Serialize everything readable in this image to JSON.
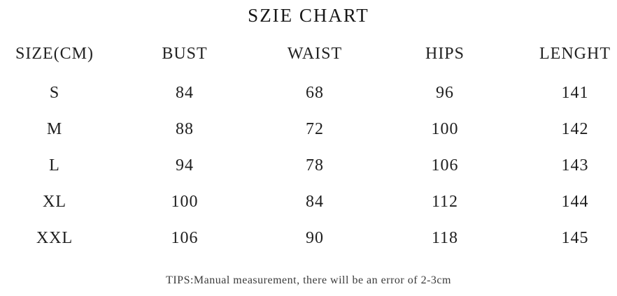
{
  "chart_data": {
    "type": "table",
    "title": "SZIE CHART",
    "unit": "cm",
    "columns": [
      "SIZE(CM)",
      "BUST",
      "WAIST",
      "HIPS",
      "LENGHT"
    ],
    "rows": [
      [
        "S",
        "84",
        "68",
        "96",
        "141"
      ],
      [
        "M",
        "88",
        "72",
        "100",
        "142"
      ],
      [
        "L",
        "94",
        "78",
        "106",
        "143"
      ],
      [
        "XL",
        "100",
        "84",
        "112",
        "144"
      ],
      [
        "XXL",
        "106",
        "90",
        "118",
        "145"
      ]
    ],
    "note": "TIPS:Manual measurement, there will be an error of 2-3cm",
    "layout_hints": {
      "borders": "none",
      "alignment": "center"
    }
  },
  "colors": {
    "background": "#ffffff",
    "text": "#1e1e1e",
    "note_text": "#3a3a3a"
  }
}
